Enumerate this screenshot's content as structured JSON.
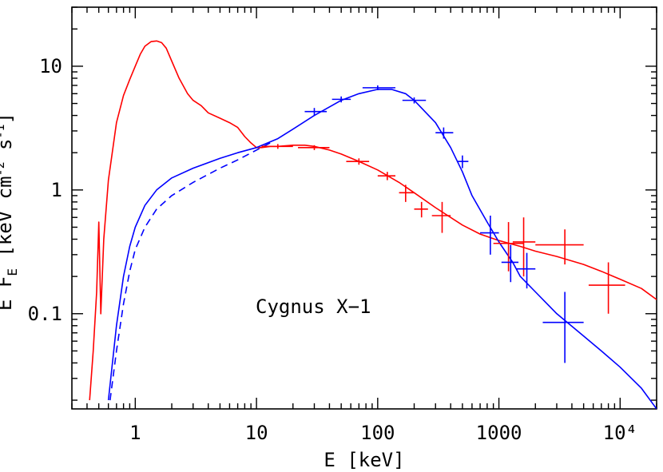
{
  "chart_data": {
    "type": "line",
    "xlabel": "E [keV]",
    "ylabel": "E F_E [keV cm^-2 s^-1]",
    "x_scale": "log",
    "y_scale": "log",
    "xlim": [
      0.3,
      20000
    ],
    "ylim": [
      0.017,
      30
    ],
    "x_ticks": [
      {
        "value": 1,
        "label": "1"
      },
      {
        "value": 10,
        "label": "10"
      },
      {
        "value": 100,
        "label": "100"
      },
      {
        "value": 1000,
        "label": "1000"
      },
      {
        "value": 10000,
        "label": "10⁴"
      }
    ],
    "y_ticks": [
      {
        "value": 0.1,
        "label": "0.1"
      },
      {
        "value": 1,
        "label": "1"
      },
      {
        "value": 10,
        "label": "10"
      }
    ],
    "annotation": "Cygnus X−1",
    "grid": false,
    "series": [
      {
        "color": "#ff0000",
        "style": "solid",
        "role": "model",
        "x": [
          0.42,
          0.45,
          0.48,
          0.5,
          0.52,
          0.55,
          0.6,
          0.7,
          0.8,
          0.9,
          1.0,
          1.1,
          1.2,
          1.35,
          1.5,
          1.65,
          1.8,
          2.0,
          2.3,
          2.7,
          3.0,
          3.5,
          4.0,
          5.0,
          6.0,
          7.0,
          8.0,
          9.0,
          10.0,
          11.0,
          13.0,
          15.0,
          20.0,
          25.0,
          30.0,
          40.0,
          50.0,
          70.0,
          100.0,
          150.0,
          200.0,
          300.0,
          500.0,
          700.0,
          1000.0,
          1500.0,
          2000.0,
          3000.0,
          5000.0,
          7000.0,
          10000.0,
          15000.0,
          20000.0
        ],
        "y": [
          0.02,
          0.05,
          0.15,
          0.55,
          0.1,
          0.4,
          1.2,
          3.5,
          5.8,
          7.8,
          10.0,
          12.5,
          14.5,
          15.8,
          16.0,
          15.5,
          14.0,
          11.0,
          8.0,
          6.0,
          5.3,
          4.8,
          4.2,
          3.8,
          3.5,
          3.2,
          2.7,
          2.4,
          2.2,
          2.2,
          2.25,
          2.25,
          2.3,
          2.3,
          2.25,
          2.1,
          1.95,
          1.7,
          1.45,
          1.15,
          0.95,
          0.72,
          0.52,
          0.44,
          0.39,
          0.35,
          0.32,
          0.29,
          0.25,
          0.22,
          0.19,
          0.16,
          0.13
        ]
      },
      {
        "color": "#0000ff",
        "style": "solid",
        "role": "model",
        "x": [
          0.6,
          0.7,
          0.8,
          0.9,
          1.0,
          1.2,
          1.5,
          2.0,
          3.0,
          5.0,
          7.0,
          10.0,
          15.0,
          20.0,
          30.0,
          50.0,
          70.0,
          100.0,
          130.0,
          170.0,
          200.0,
          300.0,
          400.0,
          500.0,
          600.0,
          800.0,
          1000.0,
          1300.0,
          1500.0,
          2000.0,
          3000.0,
          5000.0,
          7000.0,
          10000.0,
          15000.0,
          20000.0
        ],
        "y": [
          0.02,
          0.08,
          0.2,
          0.35,
          0.5,
          0.75,
          1.0,
          1.25,
          1.5,
          1.8,
          2.0,
          2.2,
          2.6,
          3.1,
          4.0,
          5.3,
          6.0,
          6.5,
          6.5,
          6.0,
          5.3,
          3.5,
          2.2,
          1.4,
          0.9,
          0.55,
          0.38,
          0.26,
          0.2,
          0.15,
          0.1,
          0.066,
          0.05,
          0.037,
          0.025,
          0.017
        ]
      },
      {
        "color": "#0000ff",
        "style": "dashed",
        "role": "model",
        "x": [
          0.62,
          0.7,
          0.8,
          0.9,
          1.0,
          1.2,
          1.5,
          2.0,
          3.0,
          5.0,
          7.0,
          10.0,
          13.0
        ],
        "y": [
          0.02,
          0.05,
          0.12,
          0.22,
          0.33,
          0.5,
          0.7,
          0.9,
          1.15,
          1.5,
          1.75,
          2.1,
          2.4
        ]
      },
      {
        "color": "#ff0000",
        "style": "crosses",
        "role": "data",
        "points": [
          {
            "x": 15,
            "y": 2.25,
            "xlo": 11,
            "xhi": 20,
            "ylo": 2.15,
            "yhi": 2.35
          },
          {
            "x": 30,
            "y": 2.2,
            "xlo": 22,
            "xhi": 40,
            "ylo": 2.1,
            "yhi": 2.3
          },
          {
            "x": 70,
            "y": 1.7,
            "xlo": 55,
            "xhi": 85,
            "ylo": 1.6,
            "yhi": 1.8
          },
          {
            "x": 120,
            "y": 1.3,
            "xlo": 100,
            "xhi": 140,
            "ylo": 1.2,
            "yhi": 1.4
          },
          {
            "x": 170,
            "y": 0.95,
            "xlo": 150,
            "xhi": 200,
            "ylo": 0.8,
            "yhi": 1.1
          },
          {
            "x": 230,
            "y": 0.7,
            "xlo": 200,
            "xhi": 260,
            "ylo": 0.6,
            "yhi": 0.8
          },
          {
            "x": 340,
            "y": 0.62,
            "xlo": 280,
            "xhi": 400,
            "ylo": 0.45,
            "yhi": 0.8
          },
          {
            "x": 1200,
            "y": 0.37,
            "xlo": 900,
            "xhi": 1600,
            "ylo": 0.22,
            "yhi": 0.55
          },
          {
            "x": 1600,
            "y": 0.38,
            "xlo": 1300,
            "xhi": 2000,
            "ylo": 0.2,
            "yhi": 0.6
          },
          {
            "x": 3500,
            "y": 0.36,
            "xlo": 2000,
            "xhi": 5000,
            "ylo": 0.25,
            "yhi": 0.48
          },
          {
            "x": 8000,
            "y": 0.17,
            "xlo": 5500,
            "xhi": 11000,
            "ylo": 0.1,
            "yhi": 0.26
          }
        ]
      },
      {
        "color": "#0000ff",
        "style": "crosses",
        "role": "data",
        "points": [
          {
            "x": 30,
            "y": 4.3,
            "xlo": 25,
            "xhi": 38,
            "ylo": 4.0,
            "yhi": 4.6
          },
          {
            "x": 50,
            "y": 5.4,
            "xlo": 42,
            "xhi": 60,
            "ylo": 5.1,
            "yhi": 5.7
          },
          {
            "x": 100,
            "y": 6.7,
            "xlo": 75,
            "xhi": 140,
            "ylo": 6.4,
            "yhi": 7.0
          },
          {
            "x": 200,
            "y": 5.3,
            "xlo": 160,
            "xhi": 250,
            "ylo": 5.0,
            "yhi": 5.6
          },
          {
            "x": 350,
            "y": 2.9,
            "xlo": 300,
            "xhi": 420,
            "ylo": 2.6,
            "yhi": 3.2
          },
          {
            "x": 500,
            "y": 1.7,
            "xlo": 450,
            "xhi": 560,
            "ylo": 1.5,
            "yhi": 1.9
          },
          {
            "x": 850,
            "y": 0.45,
            "xlo": 700,
            "xhi": 1000,
            "ylo": 0.3,
            "yhi": 0.62
          },
          {
            "x": 1250,
            "y": 0.26,
            "xlo": 1050,
            "xhi": 1450,
            "ylo": 0.18,
            "yhi": 0.36
          },
          {
            "x": 1700,
            "y": 0.23,
            "xlo": 1400,
            "xhi": 2000,
            "ylo": 0.16,
            "yhi": 0.31
          },
          {
            "x": 3500,
            "y": 0.085,
            "xlo": 2300,
            "xhi": 5000,
            "ylo": 0.04,
            "yhi": 0.15
          }
        ]
      }
    ]
  }
}
